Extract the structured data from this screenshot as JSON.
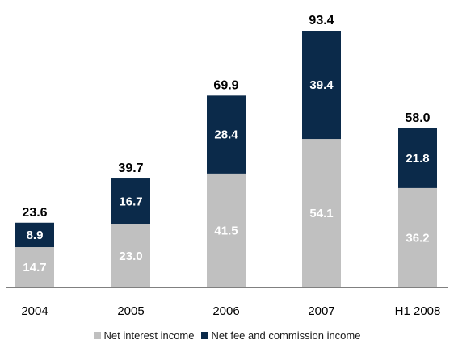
{
  "chart_data": {
    "type": "bar",
    "stacked": true,
    "categories": [
      "2004",
      "2005",
      "2006",
      "2007",
      "H1 2008"
    ],
    "series": [
      {
        "name": "Net interest income",
        "values": [
          14.7,
          23.0,
          41.5,
          54.1,
          36.2
        ],
        "color": "#c0c0c0"
      },
      {
        "name": "Net fee and commission income",
        "values": [
          8.9,
          16.7,
          28.4,
          39.4,
          21.8
        ],
        "color": "#0b2a4a"
      }
    ],
    "totals": [
      23.6,
      39.7,
      69.9,
      93.4,
      58.0
    ],
    "ylim": [
      0,
      100
    ],
    "grid": false,
    "legend_position": "bottom"
  }
}
